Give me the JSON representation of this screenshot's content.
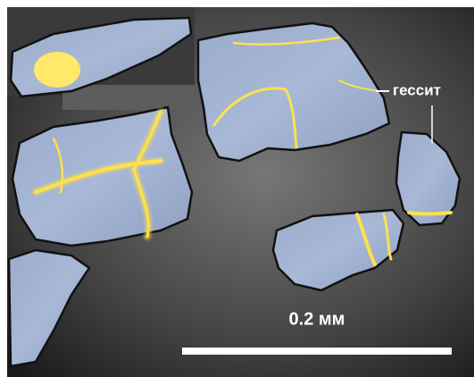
{
  "annotations": {
    "mineral_label": "гессит"
  },
  "scale_bar": {
    "label": "0.2 мм"
  }
}
